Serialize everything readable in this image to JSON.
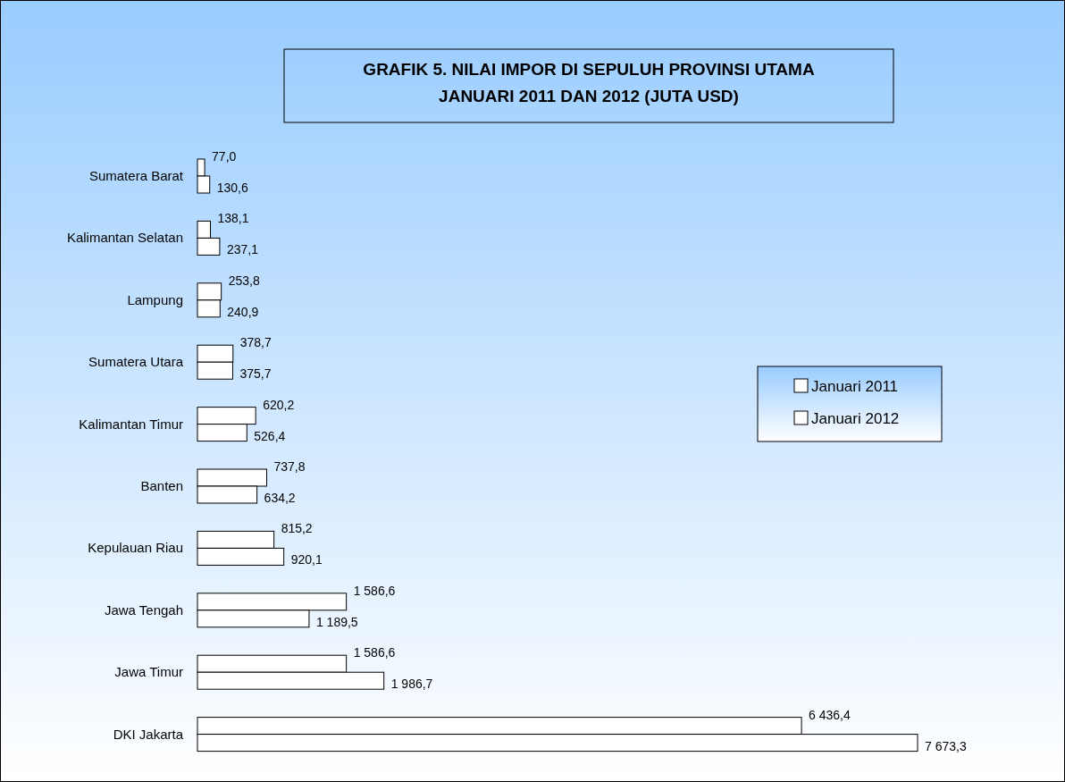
{
  "chart_data": {
    "type": "bar",
    "orientation": "horizontal",
    "title": "GRAFIK 5. NILAI IMPOR DI SEPULUH PROVINSI UTAMA\nJANUARI 2011 DAN 2012 (JUTA USD)",
    "categories": [
      "Sumatera Barat",
      "Kalimantan Selatan",
      "Lampung",
      "Sumatera Utara",
      "Kalimantan Timur",
      "Banten",
      "Kepulauan Riau",
      "Jawa Tengah",
      "Jawa Timur",
      "DKI Jakarta"
    ],
    "series": [
      {
        "name": "Januari 2011",
        "color": "#ffffff",
        "values": [
          77.0,
          138.1,
          253.8,
          378.7,
          620.2,
          737.8,
          815.2,
          1586.6,
          1586.6,
          6436.4
        ],
        "value_labels": [
          "77,0",
          "138,1",
          "253,8",
          "378,7",
          "620,2",
          "737,8",
          "815,2",
          "1 586,6",
          "1 586,6",
          "6 436,4"
        ]
      },
      {
        "name": "Januari 2012",
        "color": "#ffffff",
        "values": [
          130.6,
          237.1,
          240.9,
          375.7,
          526.4,
          634.2,
          920.1,
          1189.5,
          1986.7,
          7673.3
        ],
        "value_labels": [
          "130,6",
          "237,1",
          "240,9",
          "375,7",
          "526,4",
          "634,2",
          "920,1",
          "1 189,5",
          "1 986,7",
          "7 673,3"
        ]
      }
    ],
    "legend": "right"
  }
}
